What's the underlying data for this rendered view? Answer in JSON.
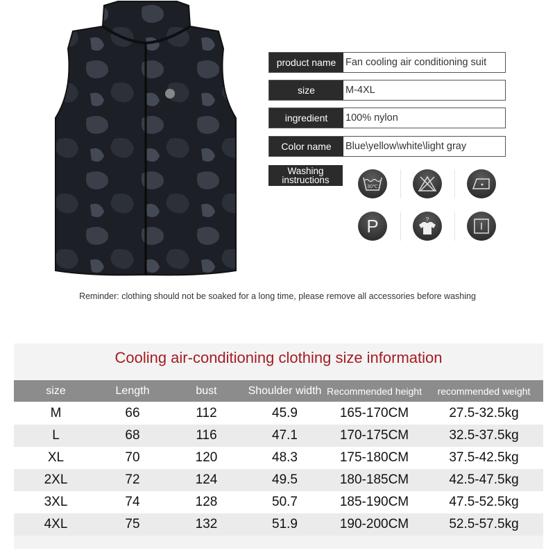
{
  "specs": [
    {
      "label": "product name",
      "value": "Fan cooling air conditioning suit"
    },
    {
      "label": "size",
      "value": "M-4XL"
    },
    {
      "label": "ingredient",
      "value": "100% nylon"
    },
    {
      "label": "Color name",
      "value": "Blue\\yellow\\white\\light gray"
    }
  ],
  "washing": {
    "label": "Washing instructions",
    "icons": [
      "wash-30c-icon",
      "do-not-bleach-icon",
      "iron-low-icon",
      "professional-dry-clean-p-icon",
      "shirt-question-icon",
      "dry-flat-icon"
    ],
    "wash_temp": "30℃"
  },
  "reminder": "Reminder: clothing should not be soaked for a long time, please remove all accessories before washing",
  "size_table": {
    "title": "Cooling air-conditioning clothing size information",
    "headers": [
      "size",
      "Length",
      "bust",
      "Shoulder width",
      "Recommended height",
      "recommended weight"
    ],
    "rows": [
      [
        "M",
        "66",
        "112",
        "45.9",
        "165-170CM",
        "27.5-32.5kg"
      ],
      [
        "L",
        "68",
        "116",
        "47.1",
        "170-175CM",
        "32.5-37.5kg"
      ],
      [
        "XL",
        "70",
        "120",
        "48.3",
        "175-180CM",
        "37.5-42.5kg"
      ],
      [
        "2XL",
        "72",
        "124",
        "49.5",
        "180-185CM",
        "42.5-47.5kg"
      ],
      [
        "3XL",
        "74",
        "128",
        "50.7",
        "185-190CM",
        "47.5-52.5kg"
      ],
      [
        "4XL",
        "75",
        "132",
        "51.9",
        "190-200CM",
        "52.5-57.5kg"
      ]
    ]
  },
  "colors": {
    "title": "#a51d24",
    "header_bg": "#8c8c8c",
    "label_bg": "#2b2b2b"
  }
}
